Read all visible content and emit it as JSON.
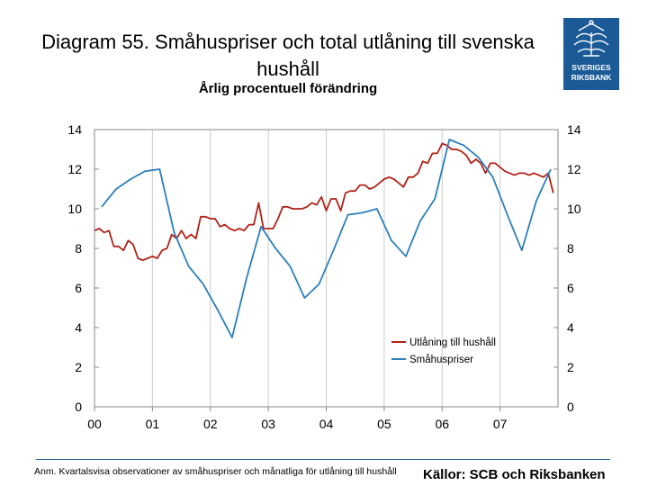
{
  "header": {
    "title": "Diagram 55. Småhuspriser och total utlåning till svenska hushåll",
    "subtitle": "Årlig procentuell förändring",
    "logo_text_1": "SVERIGES",
    "logo_text_2": "RIKSBANK"
  },
  "footer": {
    "note": "Anm. Kvartalsvisa observationer av småhuspriser och månatliga för utlåning till hushåll",
    "source": "Källor: SCB och Riksbanken"
  },
  "colors": {
    "loans": "#b02318",
    "house": "#2d7fba",
    "grid": "#cccccc",
    "logo": "#1b5a96"
  },
  "chart_data": {
    "type": "line",
    "x_tick_labels": [
      "00",
      "01",
      "02",
      "03",
      "04",
      "05",
      "06",
      "07"
    ],
    "xlim": [
      2000.0,
      2008.0
    ],
    "ylim": [
      0,
      14
    ],
    "y_ticks": [
      0,
      2,
      4,
      6,
      8,
      10,
      12,
      14
    ],
    "grid": "vertical",
    "legend_position": "lower-right",
    "series": [
      {
        "name": "Utlåning till hushåll",
        "color": "#b02318",
        "x": [
          2000.0,
          2000.083,
          2000.167,
          2000.25,
          2000.333,
          2000.417,
          2000.5,
          2000.583,
          2000.667,
          2000.75,
          2000.833,
          2000.917,
          2001.0,
          2001.083,
          2001.167,
          2001.25,
          2001.333,
          2001.417,
          2001.5,
          2001.583,
          2001.667,
          2001.75,
          2001.833,
          2001.917,
          2002.0,
          2002.083,
          2002.167,
          2002.25,
          2002.333,
          2002.417,
          2002.5,
          2002.583,
          2002.667,
          2002.75,
          2002.833,
          2002.917,
          2003.0,
          2003.083,
          2003.167,
          2003.25,
          2003.333,
          2003.417,
          2003.5,
          2003.583,
          2003.667,
          2003.75,
          2003.833,
          2003.917,
          2004.0,
          2004.083,
          2004.167,
          2004.25,
          2004.333,
          2004.417,
          2004.5,
          2004.583,
          2004.667,
          2004.75,
          2004.833,
          2004.917,
          2005.0,
          2005.083,
          2005.167,
          2005.25,
          2005.333,
          2005.417,
          2005.5,
          2005.583,
          2005.667,
          2005.75,
          2005.833,
          2005.917,
          2006.0,
          2006.083,
          2006.167,
          2006.25,
          2006.333,
          2006.417,
          2006.5,
          2006.583,
          2006.667,
          2006.75,
          2006.833,
          2006.917,
          2007.0,
          2007.083,
          2007.167,
          2007.25,
          2007.333,
          2007.417,
          2007.5,
          2007.583,
          2007.667,
          2007.75,
          2007.833,
          2007.917
        ],
        "values": [
          8.9,
          9.0,
          8.8,
          8.9,
          8.1,
          8.1,
          7.9,
          8.4,
          8.2,
          7.5,
          7.4,
          7.5,
          7.6,
          7.5,
          7.9,
          8.0,
          8.7,
          8.5,
          8.9,
          8.5,
          8.7,
          8.5,
          9.6,
          9.6,
          9.5,
          9.5,
          9.1,
          9.2,
          9.0,
          8.9,
          9.0,
          8.9,
          9.2,
          9.2,
          10.3,
          9.0,
          9.0,
          9.0,
          9.5,
          10.1,
          10.1,
          10.0,
          10.0,
          10.0,
          10.1,
          10.3,
          10.2,
          10.6,
          9.9,
          10.5,
          10.5,
          9.9,
          10.8,
          10.9,
          10.9,
          11.2,
          11.2,
          11.0,
          11.1,
          11.3,
          11.5,
          11.6,
          11.5,
          11.3,
          11.1,
          11.6,
          11.6,
          11.8,
          12.4,
          12.3,
          12.8,
          12.8,
          13.3,
          13.2,
          13.0,
          13.0,
          12.9,
          12.7,
          12.3,
          12.5,
          12.3,
          11.8,
          12.3,
          12.3,
          12.1,
          11.9,
          11.8,
          11.7,
          11.8,
          11.8,
          11.7,
          11.8,
          11.7,
          11.6,
          11.8,
          10.8
        ]
      },
      {
        "name": "Småhuspriser",
        "color": "#2d7fba",
        "x": [
          2000.125,
          2000.375,
          2000.625,
          2000.875,
          2001.125,
          2001.375,
          2001.625,
          2001.875,
          2002.125,
          2002.375,
          2002.625,
          2002.875,
          2003.125,
          2003.375,
          2003.625,
          2003.875,
          2004.125,
          2004.375,
          2004.625,
          2004.875,
          2005.125,
          2005.375,
          2005.625,
          2005.875,
          2006.125,
          2006.375,
          2006.625,
          2006.875,
          2007.125,
          2007.375,
          2007.625,
          2007.875
        ],
        "values": [
          10.1,
          11.0,
          11.5,
          11.9,
          12.0,
          8.8,
          7.1,
          6.2,
          4.9,
          3.5,
          6.5,
          9.1,
          8.0,
          7.1,
          5.5,
          6.2,
          7.9,
          9.7,
          9.8,
          10.0,
          8.4,
          7.6,
          9.4,
          10.5,
          13.5,
          13.2,
          12.6,
          11.6,
          9.7,
          7.9,
          10.4,
          12.0
        ]
      }
    ]
  }
}
